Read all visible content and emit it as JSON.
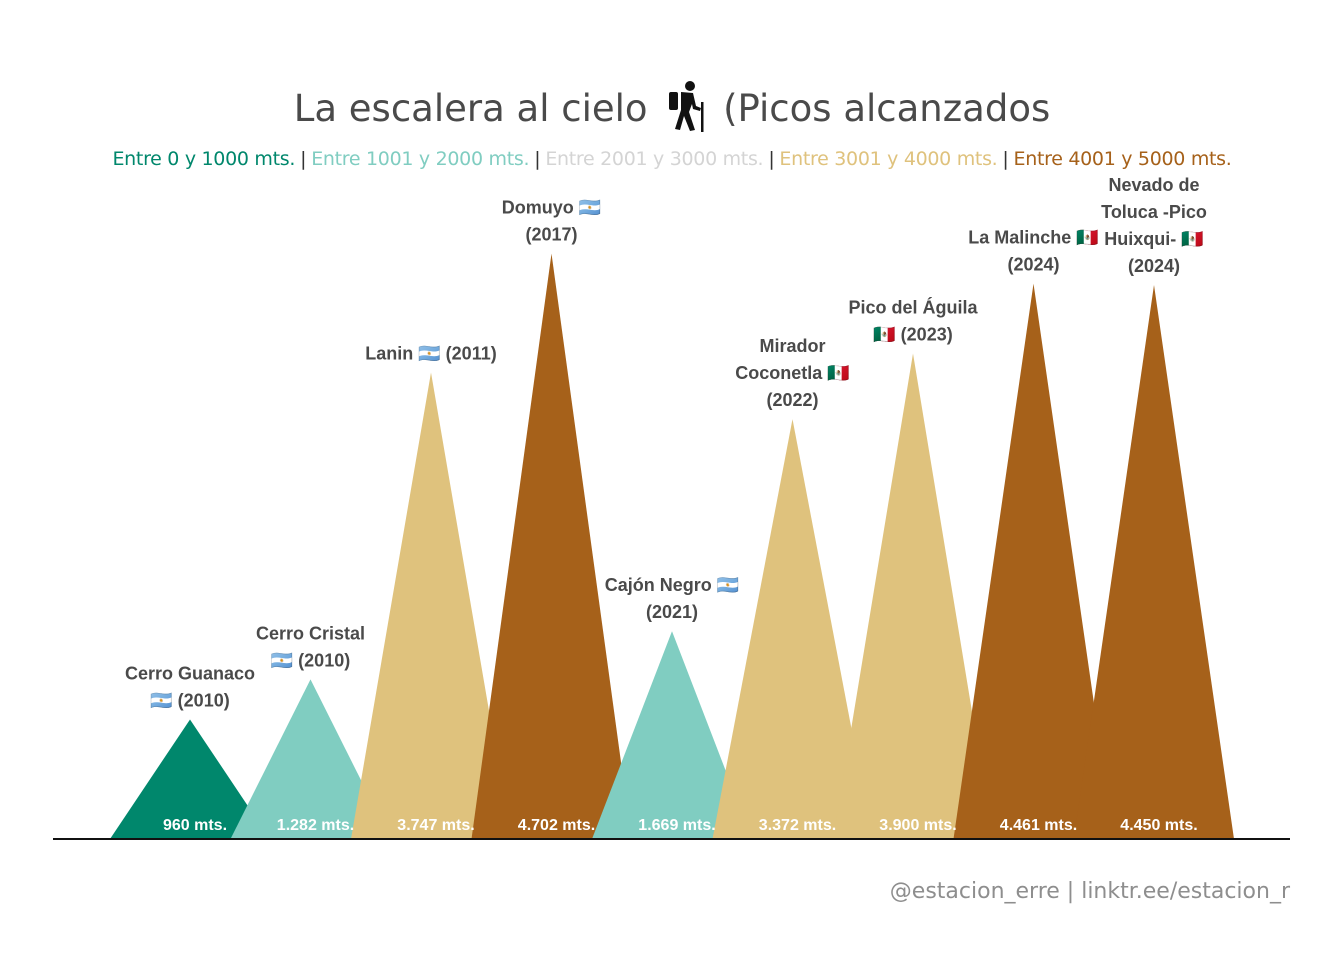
{
  "title": {
    "text_before": "La escalera al cielo",
    "icon": "hiker-icon",
    "text_after": "(Picos alcanzados"
  },
  "legend": [
    {
      "label": "Entre 0 y 1000 mts.",
      "color": "#00876c"
    },
    {
      "label": "Entre 1001 y 2000 mts.",
      "color": "#80cdc1"
    },
    {
      "label": "Entre 2001 y 3000 mts.",
      "color": "#d4d4d4"
    },
    {
      "label": "Entre 3001 y 4000 mts.",
      "color": "#dfc27d"
    },
    {
      "label": "Entre 4001 y 5000 mts.",
      "color": "#a6611a"
    }
  ],
  "caption": "@estacion_erre | linktr.ee/estacion_r",
  "chart_data": {
    "type": "area",
    "ylim": [
      0,
      5000
    ],
    "peaks": [
      {
        "name_lines": [
          "Cerro Guanaco",
          "🇦🇷 (2010)"
        ],
        "value": 960,
        "value_label": "960 mts.",
        "color": "#00876c"
      },
      {
        "name_lines": [
          "Cerro Cristal",
          "🇦🇷 (2010)"
        ],
        "value": 1282,
        "value_label": "1.282 mts.",
        "color": "#80cdc1"
      },
      {
        "name_lines": [
          "Lanin 🇦🇷 (2011)"
        ],
        "value": 3747,
        "value_label": "3.747 mts.",
        "color": "#dfc27d"
      },
      {
        "name_lines": [
          "Domuyo 🇦🇷",
          "(2017)"
        ],
        "value": 4702,
        "value_label": "4.702 mts.",
        "color": "#a6611a"
      },
      {
        "name_lines": [
          "Cajón Negro 🇦🇷",
          "(2021)"
        ],
        "value": 1669,
        "value_label": "1.669 mts.",
        "color": "#80cdc1"
      },
      {
        "name_lines": [
          "Mirador",
          "Coconetla 🇲🇽",
          "(2022)"
        ],
        "value": 3372,
        "value_label": "3.372 mts.",
        "color": "#dfc27d"
      },
      {
        "name_lines": [
          "Pico del Águila",
          "🇲🇽 (2023)"
        ],
        "value": 3900,
        "value_label": "3.900 mts.",
        "color": "#dfc27d"
      },
      {
        "name_lines": [
          "La Malinche 🇲🇽",
          "(2024)"
        ],
        "value": 4461,
        "value_label": "4.461 mts.",
        "color": "#a6611a"
      },
      {
        "name_lines": [
          "Nevado de",
          "Toluca -Pico",
          "Huixqui- 🇲🇽",
          "(2024)"
        ],
        "value": 4450,
        "value_label": "4.450 mts.",
        "color": "#a6611a"
      }
    ]
  }
}
